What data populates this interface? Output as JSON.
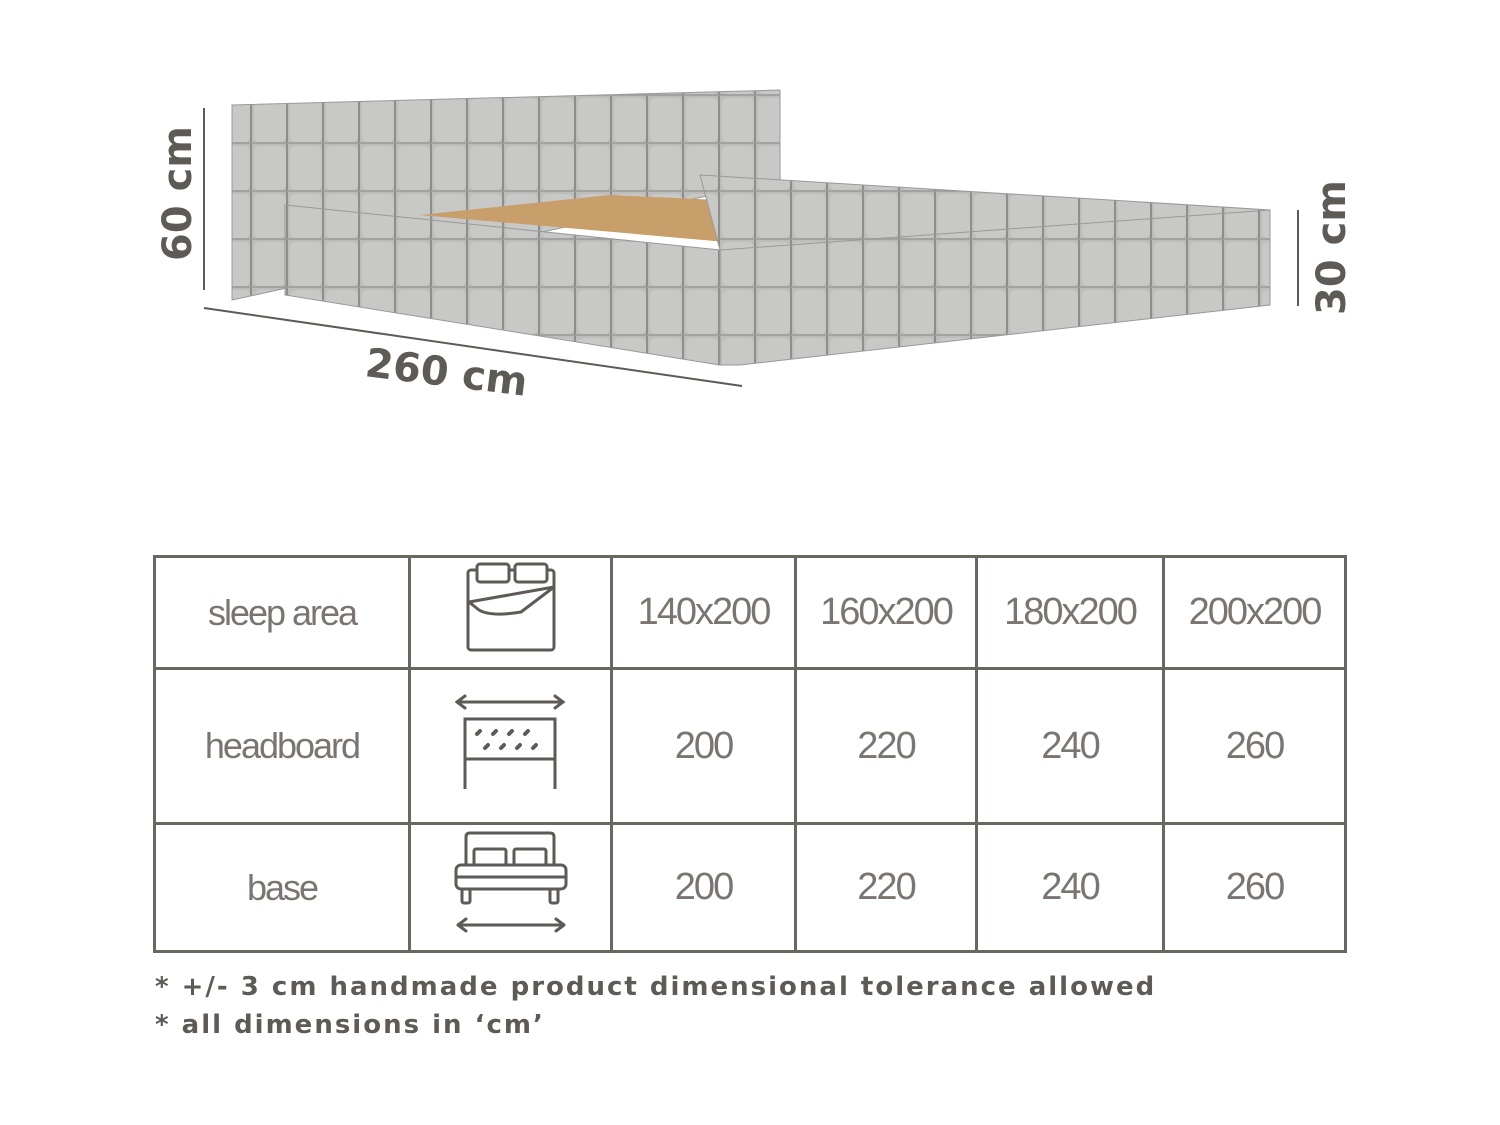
{
  "dimensions": {
    "height_headboard": "60 cm",
    "length": "260 cm",
    "height_base": "30 cm"
  },
  "table": {
    "rows": [
      {
        "label": "sleep area",
        "icon": "mattress-sleep-area-icon",
        "values": [
          "140x200",
          "160x200",
          "180x200",
          "200x200"
        ]
      },
      {
        "label": "headboard",
        "icon": "headboard-width-icon",
        "values": [
          "200",
          "220",
          "240",
          "260"
        ]
      },
      {
        "label": "base",
        "icon": "bed-base-width-icon",
        "values": [
          "200",
          "220",
          "240",
          "260"
        ]
      }
    ]
  },
  "notes": [
    "* +/- 3 cm handmade product dimensional tolerance allowed",
    "* all dimensions in ‘cm’"
  ],
  "colors": {
    "ink": "#5e5a55",
    "fabric": "#b9b9b7"
  }
}
